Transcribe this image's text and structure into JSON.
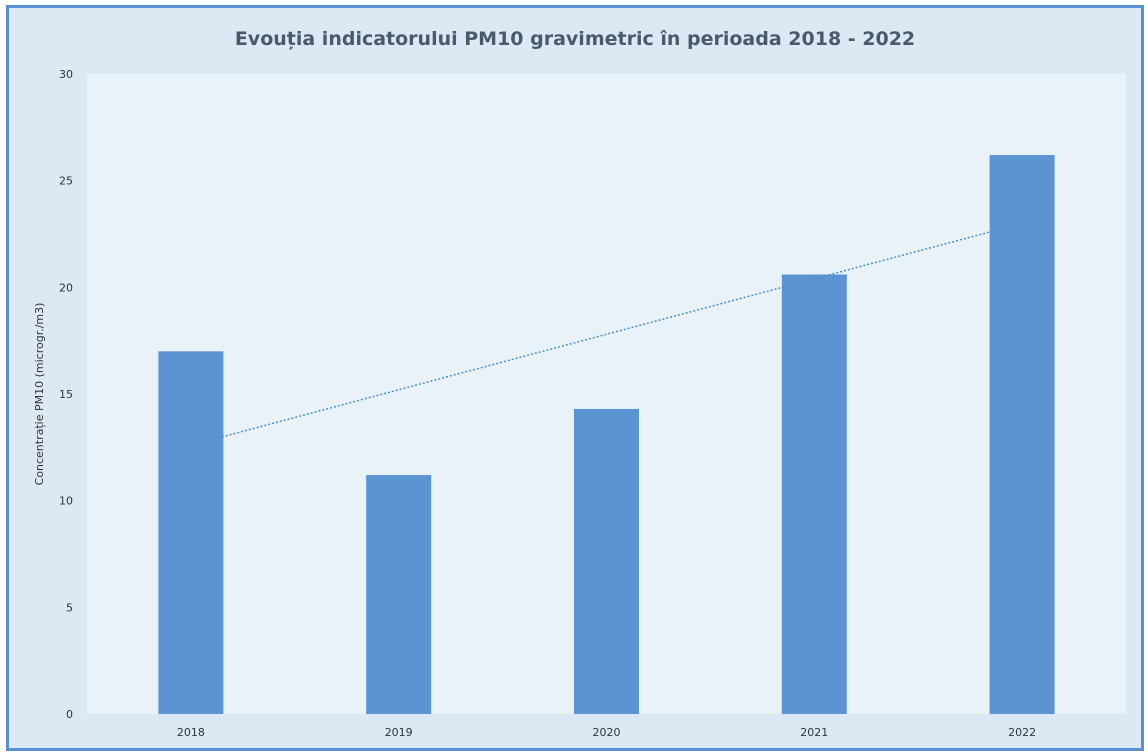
{
  "chart_data": {
    "type": "bar",
    "title": "Evouția indicatorului PM10 gravimetric în perioada 2018 - 2022",
    "xlabel": "",
    "ylabel": "Concentrație PM10 (microgr./m3)",
    "categories": [
      "2018",
      "2019",
      "2020",
      "2021",
      "2022"
    ],
    "values": [
      17.0,
      11.2,
      14.3,
      20.6,
      26.2
    ],
    "ylim": [
      0,
      30
    ],
    "yticks": [
      0,
      5,
      10,
      15,
      20,
      25,
      30
    ],
    "grid": false,
    "legend": "none",
    "trendline": {
      "type": "linear",
      "style": "dotted",
      "values": [
        12.6,
        15.2,
        17.8,
        20.4,
        23.0
      ]
    },
    "colors": {
      "bar": "#5b93d3",
      "trendline": "#4a90c8",
      "plot_background": "#e9f2f9",
      "frame_background": "#dbe9f4",
      "frame_border": "#5b8fd4"
    }
  }
}
